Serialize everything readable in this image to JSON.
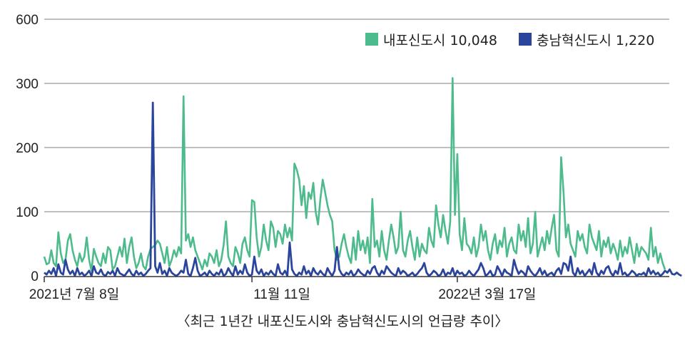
{
  "caption": "〈최근 1년간 내포신도시와 충남혁신도시의 언급량 추이〉",
  "colors": {
    "green": "#4dbb8c",
    "blue": "#2b459d",
    "grid": "#9a9a9a",
    "axis": "#333333"
  },
  "chart_data": {
    "type": "line",
    "title": "",
    "xlabel": "",
    "ylabel": "",
    "ylim": [
      0,
      600
    ],
    "y_ticks": [
      "0",
      "100",
      "200",
      "300",
      "600"
    ],
    "y_tick_values": [
      0,
      100,
      200,
      300,
      600
    ],
    "grid": true,
    "legend_position": "top-right",
    "x_ticks": [
      {
        "label": "2021년 7월 8일",
        "index": 0
      },
      {
        "label": "11월 11일",
        "index": 88
      },
      {
        "label": "2022년 3월 17일",
        "index": 175
      }
    ],
    "series": [
      {
        "name": "내포신도시 10,048",
        "legend_name": "내포신도시",
        "legend_total": "10,048",
        "color": "#4dbb8c",
        "values": [
          30,
          18,
          20,
          40,
          20,
          15,
          68,
          35,
          20,
          25,
          55,
          65,
          40,
          25,
          15,
          35,
          22,
          30,
          60,
          25,
          8,
          42,
          30,
          20,
          15,
          35,
          20,
          45,
          40,
          10,
          15,
          30,
          45,
          30,
          58,
          20,
          45,
          60,
          30,
          12,
          20,
          35,
          15,
          10,
          30,
          42,
          45,
          48,
          55,
          50,
          35,
          20,
          45,
          15,
          25,
          40,
          30,
          45,
          35,
          280,
          55,
          65,
          45,
          60,
          40,
          30,
          20,
          10,
          25,
          15,
          35,
          30,
          20,
          40,
          15,
          25,
          48,
          85,
          30,
          20,
          15,
          45,
          35,
          20,
          50,
          60,
          40,
          30,
          118,
          115,
          60,
          30,
          45,
          80,
          55,
          40,
          85,
          75,
          45,
          70,
          65,
          50,
          80,
          60,
          75,
          55,
          175,
          165,
          150,
          110,
          140,
          90,
          130,
          120,
          145,
          100,
          80,
          120,
          150,
          130,
          110,
          95,
          85,
          40,
          25,
          30,
          50,
          65,
          45,
          30,
          20,
          60,
          25,
          70,
          40,
          55,
          35,
          60,
          20,
          120,
          45,
          55,
          30,
          70,
          40,
          25,
          55,
          80,
          60,
          35,
          45,
          100,
          40,
          30,
          55,
          70,
          45,
          25,
          60,
          30,
          50,
          40,
          35,
          75,
          55,
          45,
          110,
          80,
          60,
          95,
          70,
          50,
          85,
          325,
          95,
          190,
          65,
          40,
          90,
          50,
          45,
          35,
          60,
          30,
          45,
          80,
          55,
          70,
          40,
          25,
          50,
          65,
          35,
          55,
          45,
          75,
          30,
          50,
          60,
          40,
          35,
          80,
          55,
          70,
          45,
          90,
          35,
          50,
          100,
          30,
          45,
          60,
          40,
          70,
          50,
          75,
          95,
          40,
          30,
          185,
          130,
          60,
          80,
          50,
          40,
          30,
          70,
          55,
          65,
          45,
          35,
          80,
          60,
          50,
          40,
          70,
          30,
          55,
          45,
          60,
          35,
          50,
          40,
          25,
          55,
          30,
          45,
          35,
          60,
          40,
          20,
          50,
          30,
          45,
          40,
          35,
          25,
          75,
          30,
          45,
          20,
          35,
          20,
          10
        ]
      },
      {
        "name": "충남혁신도시 1,220",
        "legend_name": "충남혁신도시",
        "legend_total": "1,220",
        "color": "#2b459d",
        "values": [
          5,
          2,
          8,
          3,
          12,
          0,
          18,
          5,
          2,
          25,
          10,
          3,
          8,
          0,
          12,
          2,
          5,
          0,
          3,
          8,
          0,
          15,
          5,
          3,
          10,
          2,
          0,
          6,
          3,
          8,
          0,
          12,
          4,
          2,
          0,
          5,
          10,
          3,
          0,
          8,
          2,
          5,
          0,
          3,
          8,
          12,
          270,
          15,
          5,
          20,
          3,
          8,
          0,
          12,
          5,
          2,
          0,
          3,
          8,
          5,
          25,
          3,
          0,
          12,
          28,
          8,
          0,
          2,
          5,
          0,
          8,
          3,
          0,
          5,
          2,
          10,
          0,
          3,
          12,
          5,
          0,
          15,
          2,
          8,
          3,
          18,
          5,
          0,
          2,
          30,
          8,
          3,
          10,
          0,
          5,
          2,
          8,
          3,
          0,
          18,
          5,
          2,
          8,
          0,
          52,
          10,
          3,
          0,
          5,
          2,
          15,
          3,
          8,
          0,
          12,
          5,
          2,
          8,
          3,
          0,
          12,
          5,
          0,
          8,
          45,
          10,
          3,
          0,
          5,
          2,
          8,
          0,
          3,
          10,
          5,
          2,
          0,
          8,
          3,
          12,
          15,
          5,
          0,
          8,
          3,
          15,
          10,
          5,
          2,
          0,
          12,
          3,
          8,
          5,
          0,
          2,
          5,
          0,
          3,
          8,
          12,
          20,
          5,
          0,
          3,
          8,
          5,
          0,
          2,
          10,
          0,
          5,
          3,
          12,
          0,
          8,
          3,
          5,
          0,
          2,
          8,
          3,
          0,
          5,
          10,
          20,
          12,
          0,
          3,
          8,
          0,
          2,
          15,
          8,
          0,
          10,
          5,
          3,
          0,
          25,
          12,
          3,
          8,
          5,
          0,
          15,
          8,
          3,
          0,
          5,
          12,
          2,
          8,
          0,
          3,
          5,
          0,
          8,
          12,
          3,
          20,
          18,
          8,
          30,
          5,
          0,
          12,
          3,
          8,
          0,
          5,
          10,
          2,
          20,
          5,
          0,
          8,
          3,
          12,
          15,
          5,
          0,
          8,
          3,
          20,
          2,
          5,
          0,
          3,
          8,
          5,
          0,
          3,
          2,
          5,
          0,
          12,
          3,
          8,
          2,
          5,
          0,
          3,
          8,
          5,
          10,
          3,
          2,
          5,
          2,
          0
        ]
      }
    ]
  }
}
